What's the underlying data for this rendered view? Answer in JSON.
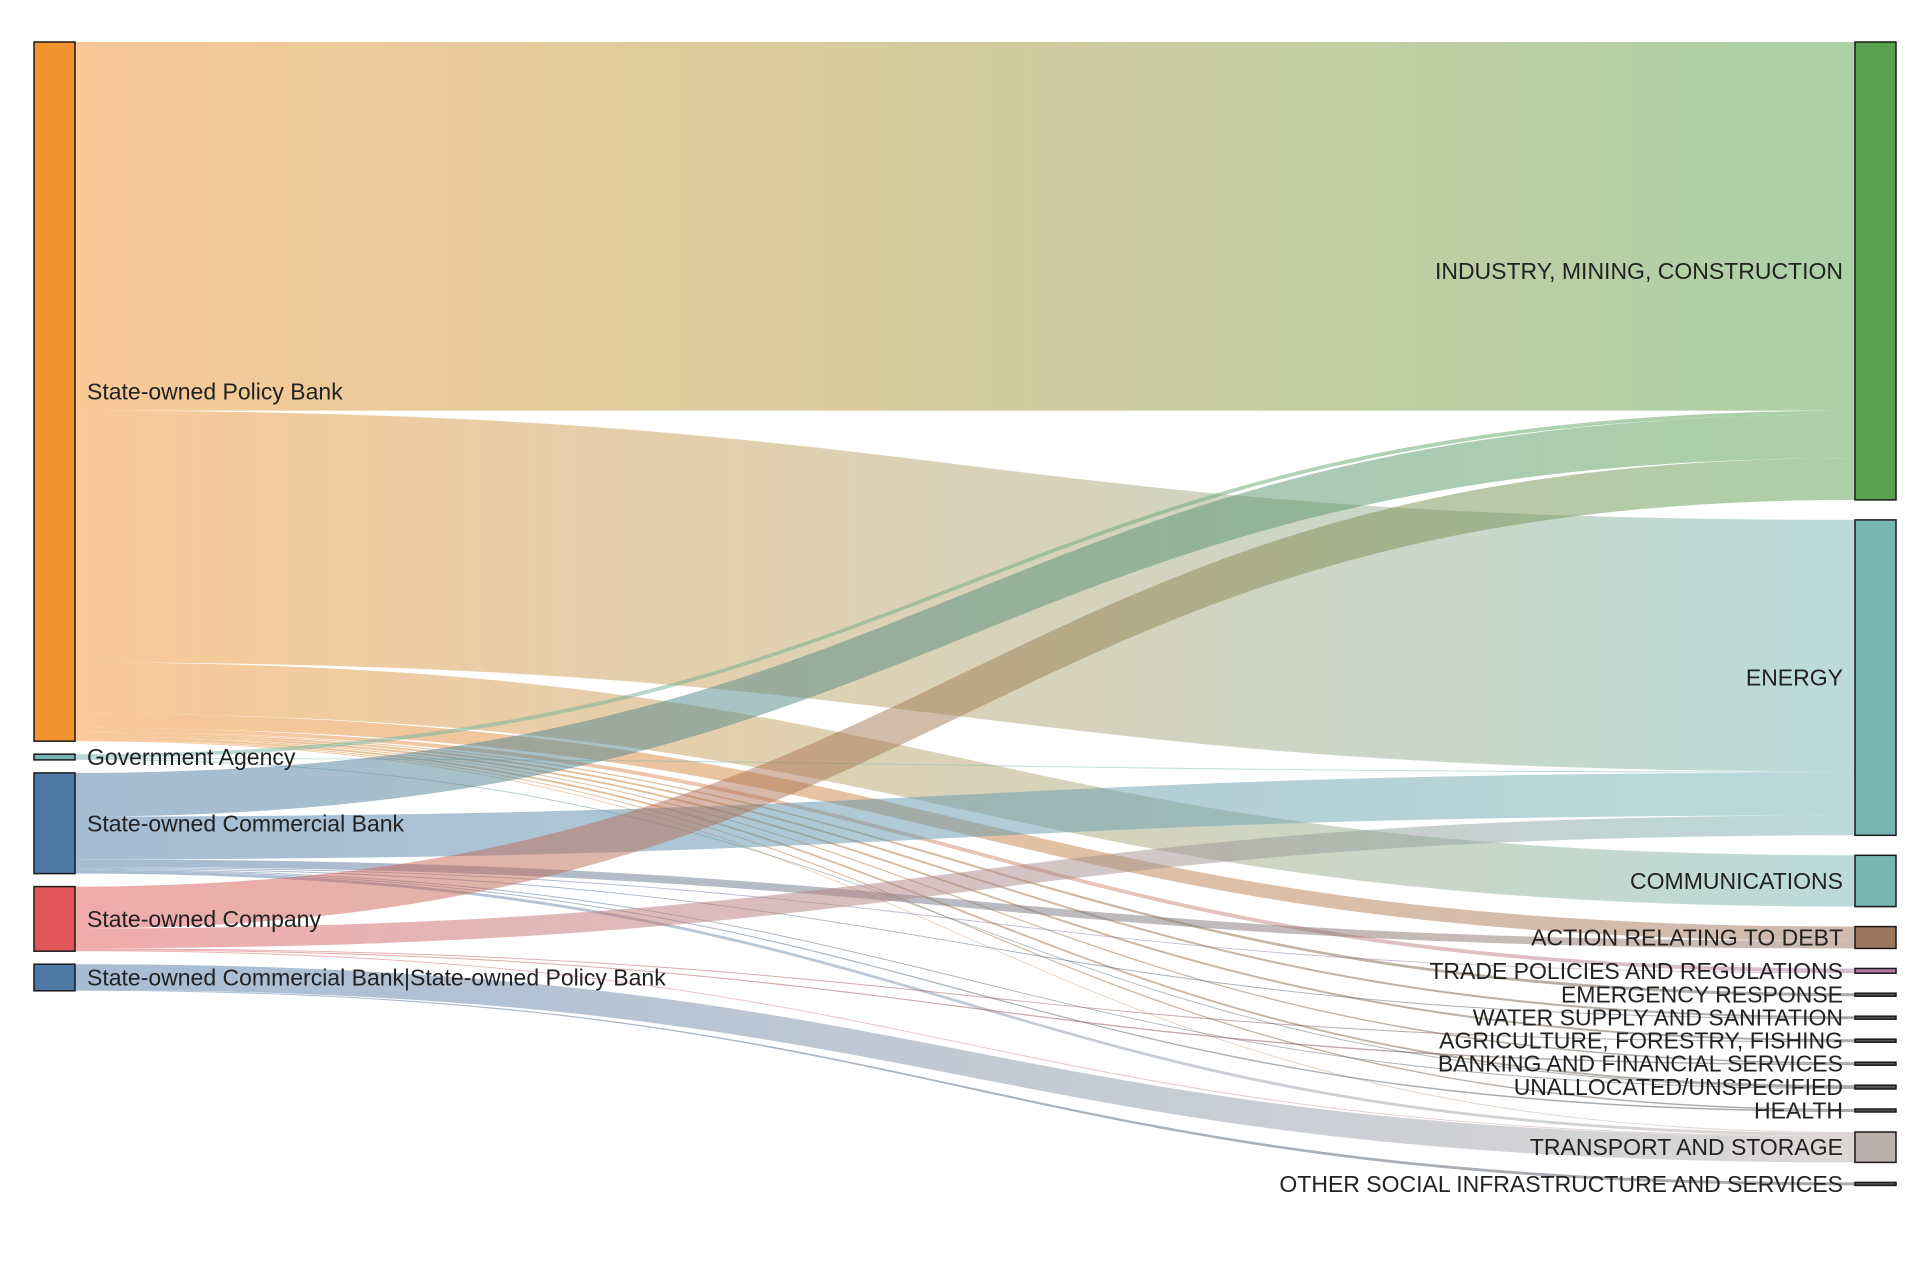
{
  "chart_data": {
    "type": "sankey",
    "sources": [
      {
        "id": "policy",
        "label": "State-owned Policy Bank",
        "color": "#f39330"
      },
      {
        "id": "gov",
        "label": "Government Agency",
        "color": "#76b7b2"
      },
      {
        "id": "comm",
        "label": "State-owned Commercial Bank",
        "color": "#4e79a7"
      },
      {
        "id": "company",
        "label": "State-owned Company",
        "color": "#e15759"
      },
      {
        "id": "combo",
        "label": "State-owned Commercial Bank|State-owned Policy Bank",
        "color": "#4e79a7"
      }
    ],
    "targets": [
      {
        "id": "industry",
        "label": "INDUSTRY, MINING, CONSTRUCTION",
        "color": "#59a14f"
      },
      {
        "id": "energy",
        "label": "ENERGY",
        "color": "#76b7b2"
      },
      {
        "id": "communications",
        "label": "COMMUNICATIONS",
        "color": "#76b7b2"
      },
      {
        "id": "debt",
        "label": "ACTION RELATING TO DEBT",
        "color": "#9c755f"
      },
      {
        "id": "trade",
        "label": "TRADE POLICIES AND REGULATIONS",
        "color": "#b07aa1"
      },
      {
        "id": "emergency",
        "label": "EMERGENCY RESPONSE",
        "color": "#555555"
      },
      {
        "id": "water",
        "label": "WATER SUPPLY AND SANITATION",
        "color": "#555555"
      },
      {
        "id": "agri",
        "label": "AGRICULTURE, FORESTRY, FISHING",
        "color": "#555555"
      },
      {
        "id": "banking",
        "label": "BANKING AND FINANCIAL SERVICES",
        "color": "#555555"
      },
      {
        "id": "unalloc",
        "label": "UNALLOCATED/UNSPECIFIED",
        "color": "#555555"
      },
      {
        "id": "health",
        "label": "HEALTH",
        "color": "#555555"
      },
      {
        "id": "transport",
        "label": "TRANSPORT AND STORAGE",
        "color": "#bab0ac"
      },
      {
        "id": "social",
        "label": "OTHER SOCIAL INFRASTRUCTURE AND SERVICES",
        "color": "#555555"
      }
    ],
    "links": [
      {
        "source": "policy",
        "target": "industry",
        "value": 388
      },
      {
        "source": "policy",
        "target": "energy",
        "value": 265
      },
      {
        "source": "policy",
        "target": "communications",
        "value": 54
      },
      {
        "source": "policy",
        "target": "debt",
        "value": 15
      },
      {
        "source": "policy",
        "target": "trade",
        "value": 4
      },
      {
        "source": "policy",
        "target": "emergency",
        "value": 1
      },
      {
        "source": "policy",
        "target": "water",
        "value": 2
      },
      {
        "source": "policy",
        "target": "agri",
        "value": 2
      },
      {
        "source": "policy",
        "target": "banking",
        "value": 1
      },
      {
        "source": "policy",
        "target": "unalloc",
        "value": 2
      },
      {
        "source": "policy",
        "target": "health",
        "value": 1
      },
      {
        "source": "policy",
        "target": "transport",
        "value": 1
      },
      {
        "source": "gov",
        "target": "industry",
        "value": 4
      },
      {
        "source": "gov",
        "target": "energy",
        "value": 1
      },
      {
        "source": "gov",
        "target": "unalloc",
        "value": 1
      },
      {
        "source": "comm",
        "target": "industry",
        "value": 46
      },
      {
        "source": "comm",
        "target": "energy",
        "value": 45
      },
      {
        "source": "comm",
        "target": "debt",
        "value": 8
      },
      {
        "source": "comm",
        "target": "trade",
        "value": 1
      },
      {
        "source": "comm",
        "target": "water",
        "value": 1
      },
      {
        "source": "comm",
        "target": "unalloc",
        "value": 1
      },
      {
        "source": "comm",
        "target": "health",
        "value": 1
      },
      {
        "source": "comm",
        "target": "transport",
        "value": 3
      },
      {
        "source": "company",
        "target": "industry",
        "value": 44
      },
      {
        "source": "company",
        "target": "energy",
        "value": 21
      },
      {
        "source": "company",
        "target": "agri",
        "value": 1
      },
      {
        "source": "company",
        "target": "banking",
        "value": 1
      },
      {
        "source": "company",
        "target": "transport",
        "value": 1
      },
      {
        "source": "combo",
        "target": "transport",
        "value": 27
      },
      {
        "source": "combo",
        "target": "social",
        "value": 1
      }
    ]
  }
}
